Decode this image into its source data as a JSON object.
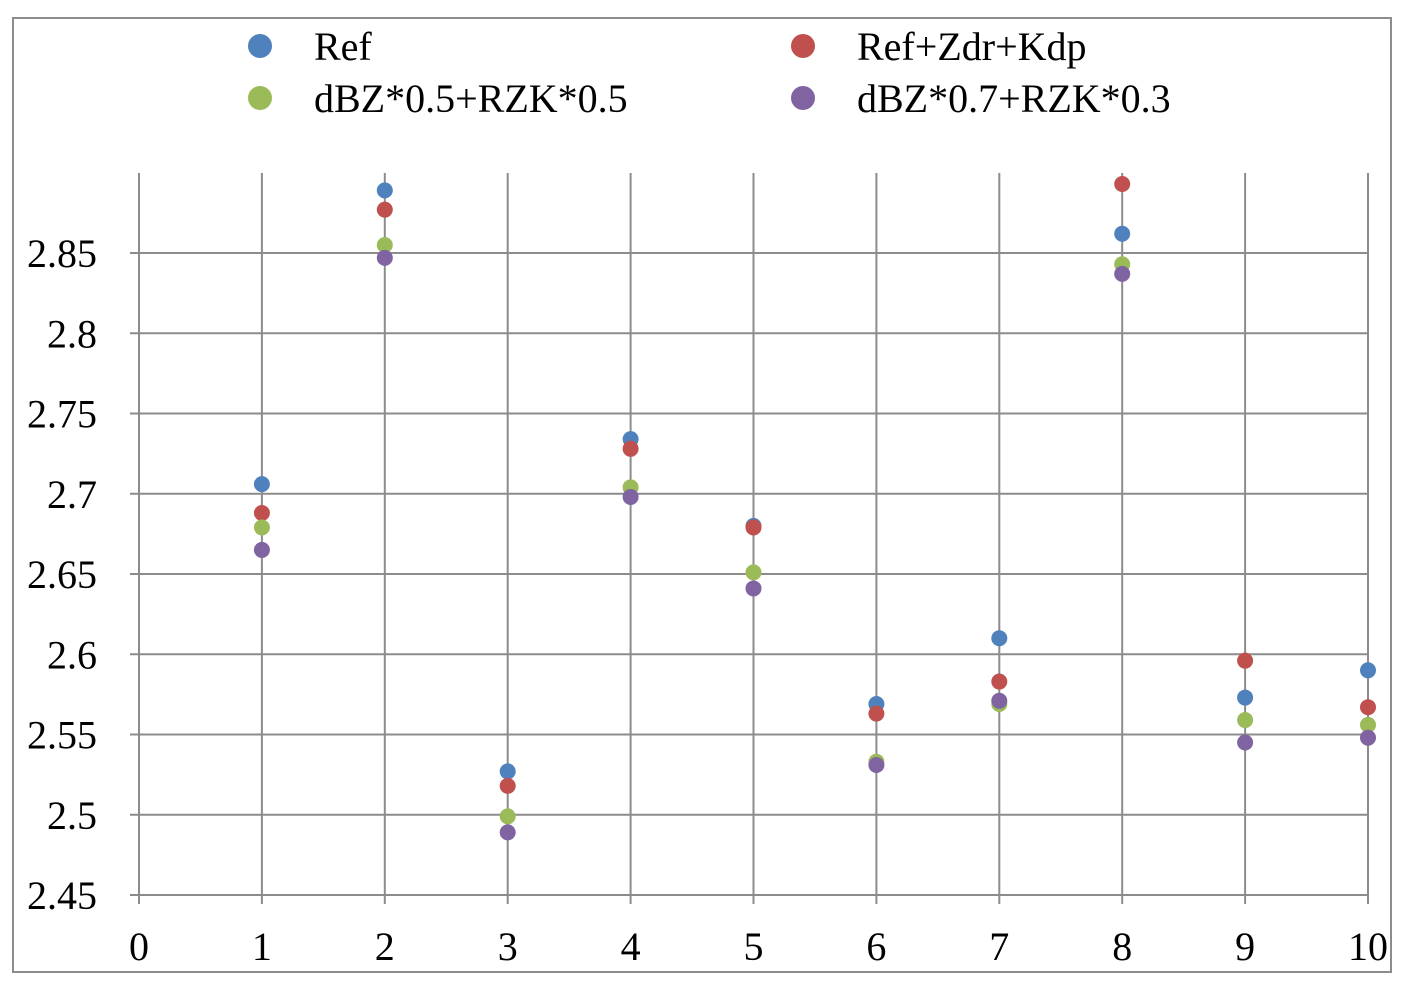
{
  "chart_data": {
    "type": "scatter",
    "title": "",
    "xlabel": "",
    "ylabel": "",
    "xlim": [
      0,
      10
    ],
    "ylim": [
      2.45,
      2.9
    ],
    "x_ticks": [
      0,
      1,
      2,
      3,
      4,
      5,
      6,
      7,
      8,
      9,
      10
    ],
    "y_ticks": [
      2.45,
      2.5,
      2.55,
      2.6,
      2.65,
      2.7,
      2.75,
      2.8,
      2.85
    ],
    "x_tick_labels": [
      "0",
      "1",
      "2",
      "3",
      "4",
      "5",
      "6",
      "7",
      "8",
      "9",
      "10"
    ],
    "y_tick_labels": [
      "2.45",
      "2.5",
      "2.55",
      "2.6",
      "2.65",
      "2.7",
      "2.75",
      "2.8",
      "2.85"
    ],
    "grid": true,
    "legend_position": "top",
    "x": [
      1,
      2,
      3,
      4,
      5,
      6,
      7,
      8,
      9,
      10
    ],
    "series": [
      {
        "name": "Ref",
        "color": "#4f81bd",
        "values": [
          2.706,
          2.889,
          2.527,
          2.734,
          2.68,
          2.569,
          2.61,
          2.862,
          2.573,
          2.59
        ]
      },
      {
        "name": "Ref+Zdr+Kdp",
        "color": "#c0504d",
        "values": [
          2.688,
          2.877,
          2.518,
          2.728,
          2.679,
          2.563,
          2.583,
          2.893,
          2.596,
          2.567
        ]
      },
      {
        "name": "dBZ*0.5+RZK*0.5",
        "color": "#9bbb59",
        "values": [
          2.679,
          2.855,
          2.499,
          2.704,
          2.651,
          2.533,
          2.569,
          2.843,
          2.559,
          2.556
        ]
      },
      {
        "name": "dBZ*0.7+RZK*0.3",
        "color": "#8064a2",
        "values": [
          2.665,
          2.847,
          2.489,
          2.698,
          2.641,
          2.531,
          2.571,
          2.837,
          2.545,
          2.548
        ]
      }
    ]
  }
}
